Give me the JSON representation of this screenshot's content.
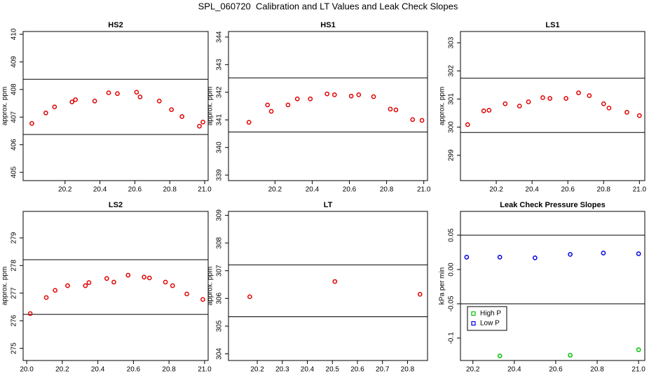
{
  "title": "SPL_060720  Calibration and LT Values and Leak Check Slopes",
  "chart_data": [
    {
      "type": "scatter",
      "title": "HS2",
      "y_label": "approx. ppm",
      "xlim": [
        19.96,
        21.02
      ],
      "xticks": [
        20.2,
        20.4,
        20.6,
        20.8,
        21.0
      ],
      "ylim": [
        404.7,
        410.1
      ],
      "yticks": [
        405,
        406,
        407,
        408,
        409,
        410
      ],
      "hlines": [
        408.37,
        406.37
      ],
      "series": [
        {
          "color": "#e00000",
          "x": [
            20.01,
            20.09,
            20.14,
            20.24,
            20.26,
            20.37,
            20.45,
            20.5,
            20.61,
            20.63,
            20.74,
            20.81,
            20.87,
            20.97,
            20.99
          ],
          "values": [
            406.77,
            407.15,
            407.37,
            407.55,
            407.63,
            407.58,
            407.88,
            407.85,
            407.9,
            407.73,
            407.58,
            407.27,
            407.02,
            406.67,
            406.82
          ]
        }
      ]
    },
    {
      "type": "scatter",
      "title": "HS1",
      "y_label": "approx. ppm",
      "xlim": [
        19.95,
        21.02
      ],
      "xticks": [
        20.2,
        20.4,
        20.6,
        20.8,
        21.0
      ],
      "ylim": [
        338.8,
        344.2
      ],
      "yticks": [
        339,
        340,
        341,
        342,
        343,
        344
      ],
      "hlines": [
        342.52,
        340.56
      ],
      "series": [
        {
          "color": "#e00000",
          "x": [
            20.06,
            20.16,
            20.18,
            20.27,
            20.32,
            20.39,
            20.48,
            20.52,
            20.61,
            20.65,
            20.73,
            20.82,
            20.85,
            20.94,
            20.99
          ],
          "values": [
            340.91,
            341.54,
            341.31,
            341.54,
            341.76,
            341.76,
            341.94,
            341.91,
            341.86,
            341.91,
            341.84,
            341.39,
            341.36,
            341.01,
            340.98
          ]
        }
      ]
    },
    {
      "type": "scatter",
      "title": "LS1",
      "y_label": "approx. ppm",
      "xlim": [
        20.0,
        21.03
      ],
      "xticks": [
        20.2,
        20.4,
        20.6,
        20.8,
        21.0
      ],
      "ylim": [
        298.1,
        303.4
      ],
      "yticks": [
        299,
        300,
        301,
        302,
        303
      ],
      "hlines": [
        301.74,
        299.81
      ],
      "series": [
        {
          "color": "#e00000",
          "x": [
            20.04,
            20.13,
            20.16,
            20.25,
            20.33,
            20.38,
            20.46,
            20.5,
            20.59,
            20.66,
            20.72,
            20.8,
            20.83,
            20.93,
            21.0
          ],
          "values": [
            300.09,
            300.58,
            300.6,
            300.83,
            300.75,
            300.9,
            301.05,
            301.02,
            301.02,
            301.22,
            301.12,
            300.83,
            300.68,
            300.53,
            300.41
          ]
        }
      ]
    },
    {
      "type": "scatter",
      "title": "LS2",
      "y_label": "approx. ppm",
      "xlim": [
        19.98,
        21.02
      ],
      "xticks": [
        20.0,
        20.2,
        20.4,
        20.6,
        20.8,
        21.0
      ],
      "ylim": [
        274.56,
        279.96
      ],
      "yticks": [
        275,
        276,
        277,
        278,
        279
      ],
      "hlines": [
        278.21,
        276.23
      ],
      "series": [
        {
          "color": "#e00000",
          "x": [
            20.02,
            20.11,
            20.16,
            20.23,
            20.33,
            20.35,
            20.45,
            20.49,
            20.57,
            20.66,
            20.69,
            20.78,
            20.82,
            20.9,
            20.99
          ],
          "values": [
            276.26,
            276.84,
            277.1,
            277.27,
            277.27,
            277.38,
            277.53,
            277.4,
            277.65,
            277.58,
            277.55,
            277.4,
            277.27,
            276.97,
            276.77
          ]
        }
      ]
    },
    {
      "type": "scatter",
      "title": "LT",
      "y_label": "approx. ppm",
      "xlim": [
        20.085,
        20.88
      ],
      "xticks": [
        20.2,
        20.3,
        20.4,
        20.5,
        20.6,
        20.7,
        20.8
      ],
      "ylim": [
        303.76,
        309.14
      ],
      "yticks": [
        304,
        305,
        306,
        307,
        308,
        309
      ],
      "hlines": [
        307.21,
        305.34
      ],
      "series": [
        {
          "color": "#e00000",
          "x": [
            20.17,
            20.51,
            20.85
          ],
          "values": [
            306.06,
            306.61,
            306.15
          ]
        }
      ]
    },
    {
      "type": "scatter",
      "title": "Leak Check Pressure Slopes",
      "y_label": "kPa per min",
      "xlim": [
        20.14,
        21.03
      ],
      "xticks": [
        20.2,
        20.4,
        20.6,
        20.8,
        21.0
      ],
      "ylim": [
        -0.1327,
        0.0847
      ],
      "yticks": [
        0.05,
        {
          "value": 0,
          "label": "0.00"
        },
        -0.05,
        -0.1
      ],
      "hlines": [
        0.05,
        -0.05
      ],
      "legend": "bottom-left",
      "series": [
        {
          "name": "High P",
          "color": "#00c000",
          "x": [
            20.33,
            20.67,
            21.0
          ],
          "values": [
            -0.126,
            -0.125,
            -0.117
          ]
        },
        {
          "name": "Low P",
          "color": "#0000e0",
          "x": [
            20.17,
            20.33,
            20.5,
            20.67,
            20.83,
            21.0
          ],
          "values": [
            0.018,
            0.018,
            0.017,
            0.022,
            0.024,
            0.023
          ]
        }
      ]
    }
  ]
}
